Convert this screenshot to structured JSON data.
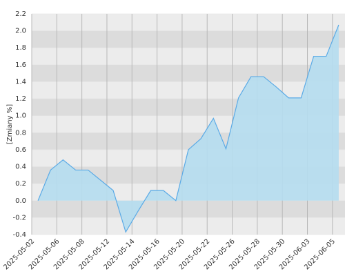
{
  "chart_data": {
    "type": "area",
    "ylabel": "[Zmiany %]",
    "categories": [
      "2025-05-02",
      null,
      "2025-05-06",
      null,
      "2025-05-08",
      null,
      "2025-05-12",
      null,
      "2025-05-14",
      null,
      "2025-05-16",
      null,
      "2025-05-20",
      null,
      "2025-05-22",
      null,
      "2025-05-26",
      null,
      "2025-05-28",
      null,
      "2025-05-30",
      null,
      "2025-06-03",
      null,
      "2025-06-05"
    ],
    "values": [
      0.0,
      0.36,
      0.48,
      0.36,
      0.36,
      0.24,
      0.12,
      -0.37,
      -0.12,
      0.12,
      0.12,
      0.0,
      0.6,
      0.73,
      0.97,
      0.61,
      1.21,
      1.46,
      1.46,
      1.34,
      1.21,
      1.21,
      1.7,
      1.7,
      2.07
    ],
    "color": "#5aaae6",
    "fill": "#b5ddf0",
    "ylim": [
      -0.4,
      2.2
    ],
    "yticks": [
      -0.4,
      -0.2,
      {
        "value": 0,
        "label": "0.0"
      },
      0.2,
      0.4,
      0.6,
      0.8,
      {
        "value": 1,
        "label": "1.0"
      },
      1.2,
      1.4,
      1.6,
      1.8,
      {
        "value": 2,
        "label": "2.0"
      },
      2.2
    ],
    "grid": true
  }
}
